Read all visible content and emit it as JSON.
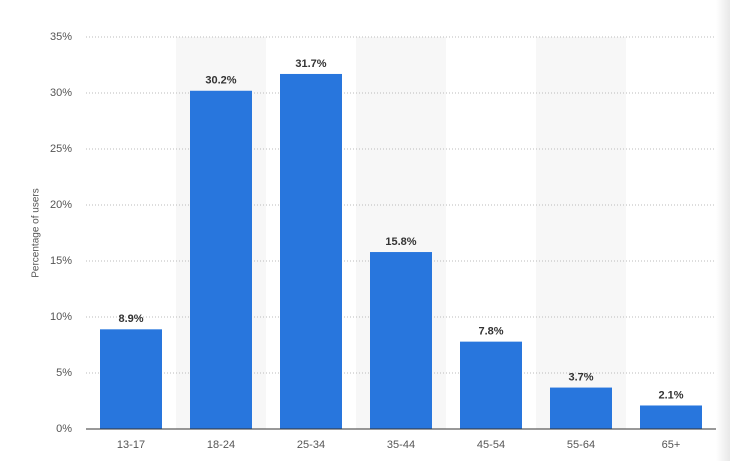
{
  "chart_data": {
    "type": "bar",
    "y_label": "Percentage of users",
    "categories": [
      "13-17",
      "18-24",
      "25-34",
      "35-44",
      "45-54",
      "55-64",
      "65+"
    ],
    "values": [
      8.9,
      30.2,
      31.7,
      15.8,
      7.8,
      3.7,
      2.1
    ],
    "value_labels": [
      "8.9%",
      "30.2%",
      "31.7%",
      "15.8%",
      "7.8%",
      "3.7%",
      "2.1%"
    ],
    "color": "#2876dd",
    "ylim": [
      0,
      35
    ],
    "yticks": [
      {
        "value": 0,
        "label": "0%"
      },
      {
        "value": 5,
        "label": "5%"
      },
      {
        "value": 10,
        "label": "10%"
      },
      {
        "value": 15,
        "label": "15%"
      },
      {
        "value": 20,
        "label": "20%"
      },
      {
        "value": 25,
        "label": "25%"
      },
      {
        "value": 30,
        "label": "30%"
      },
      {
        "value": 35,
        "label": "35%"
      }
    ],
    "grid": true
  }
}
